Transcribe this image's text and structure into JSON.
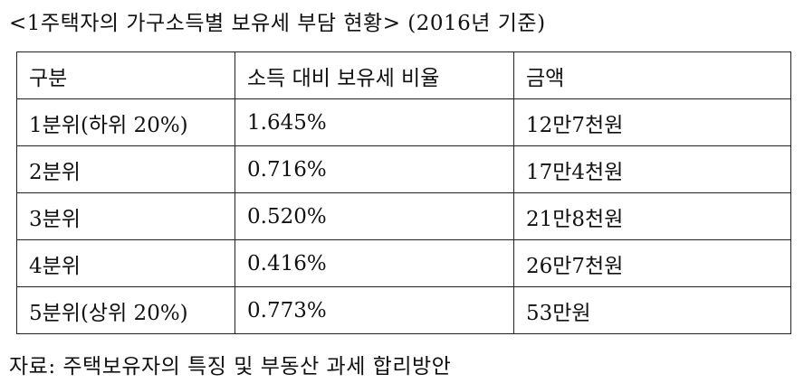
{
  "header": {
    "title": "<1주택자의 가구소득별 보유세 부담 현황> (2016년 기준)"
  },
  "table": {
    "columns": [
      "구분",
      "소득 대비 보유세 비율",
      "금액"
    ],
    "rows": [
      [
        "1분위(하위 20%)",
        "1.645%",
        "12만7천원"
      ],
      [
        "2분위",
        "0.716%",
        "17만4천원"
      ],
      [
        "3분위",
        "0.520%",
        "21만8천원"
      ],
      [
        "4분위",
        "0.416%",
        "26만7천원"
      ],
      [
        "5분위(상위 20%)",
        "0.773%",
        "53만원"
      ]
    ]
  },
  "footer": {
    "source": "자료: 주택보유자의 특징 및 부동산 과세 합리방안"
  }
}
